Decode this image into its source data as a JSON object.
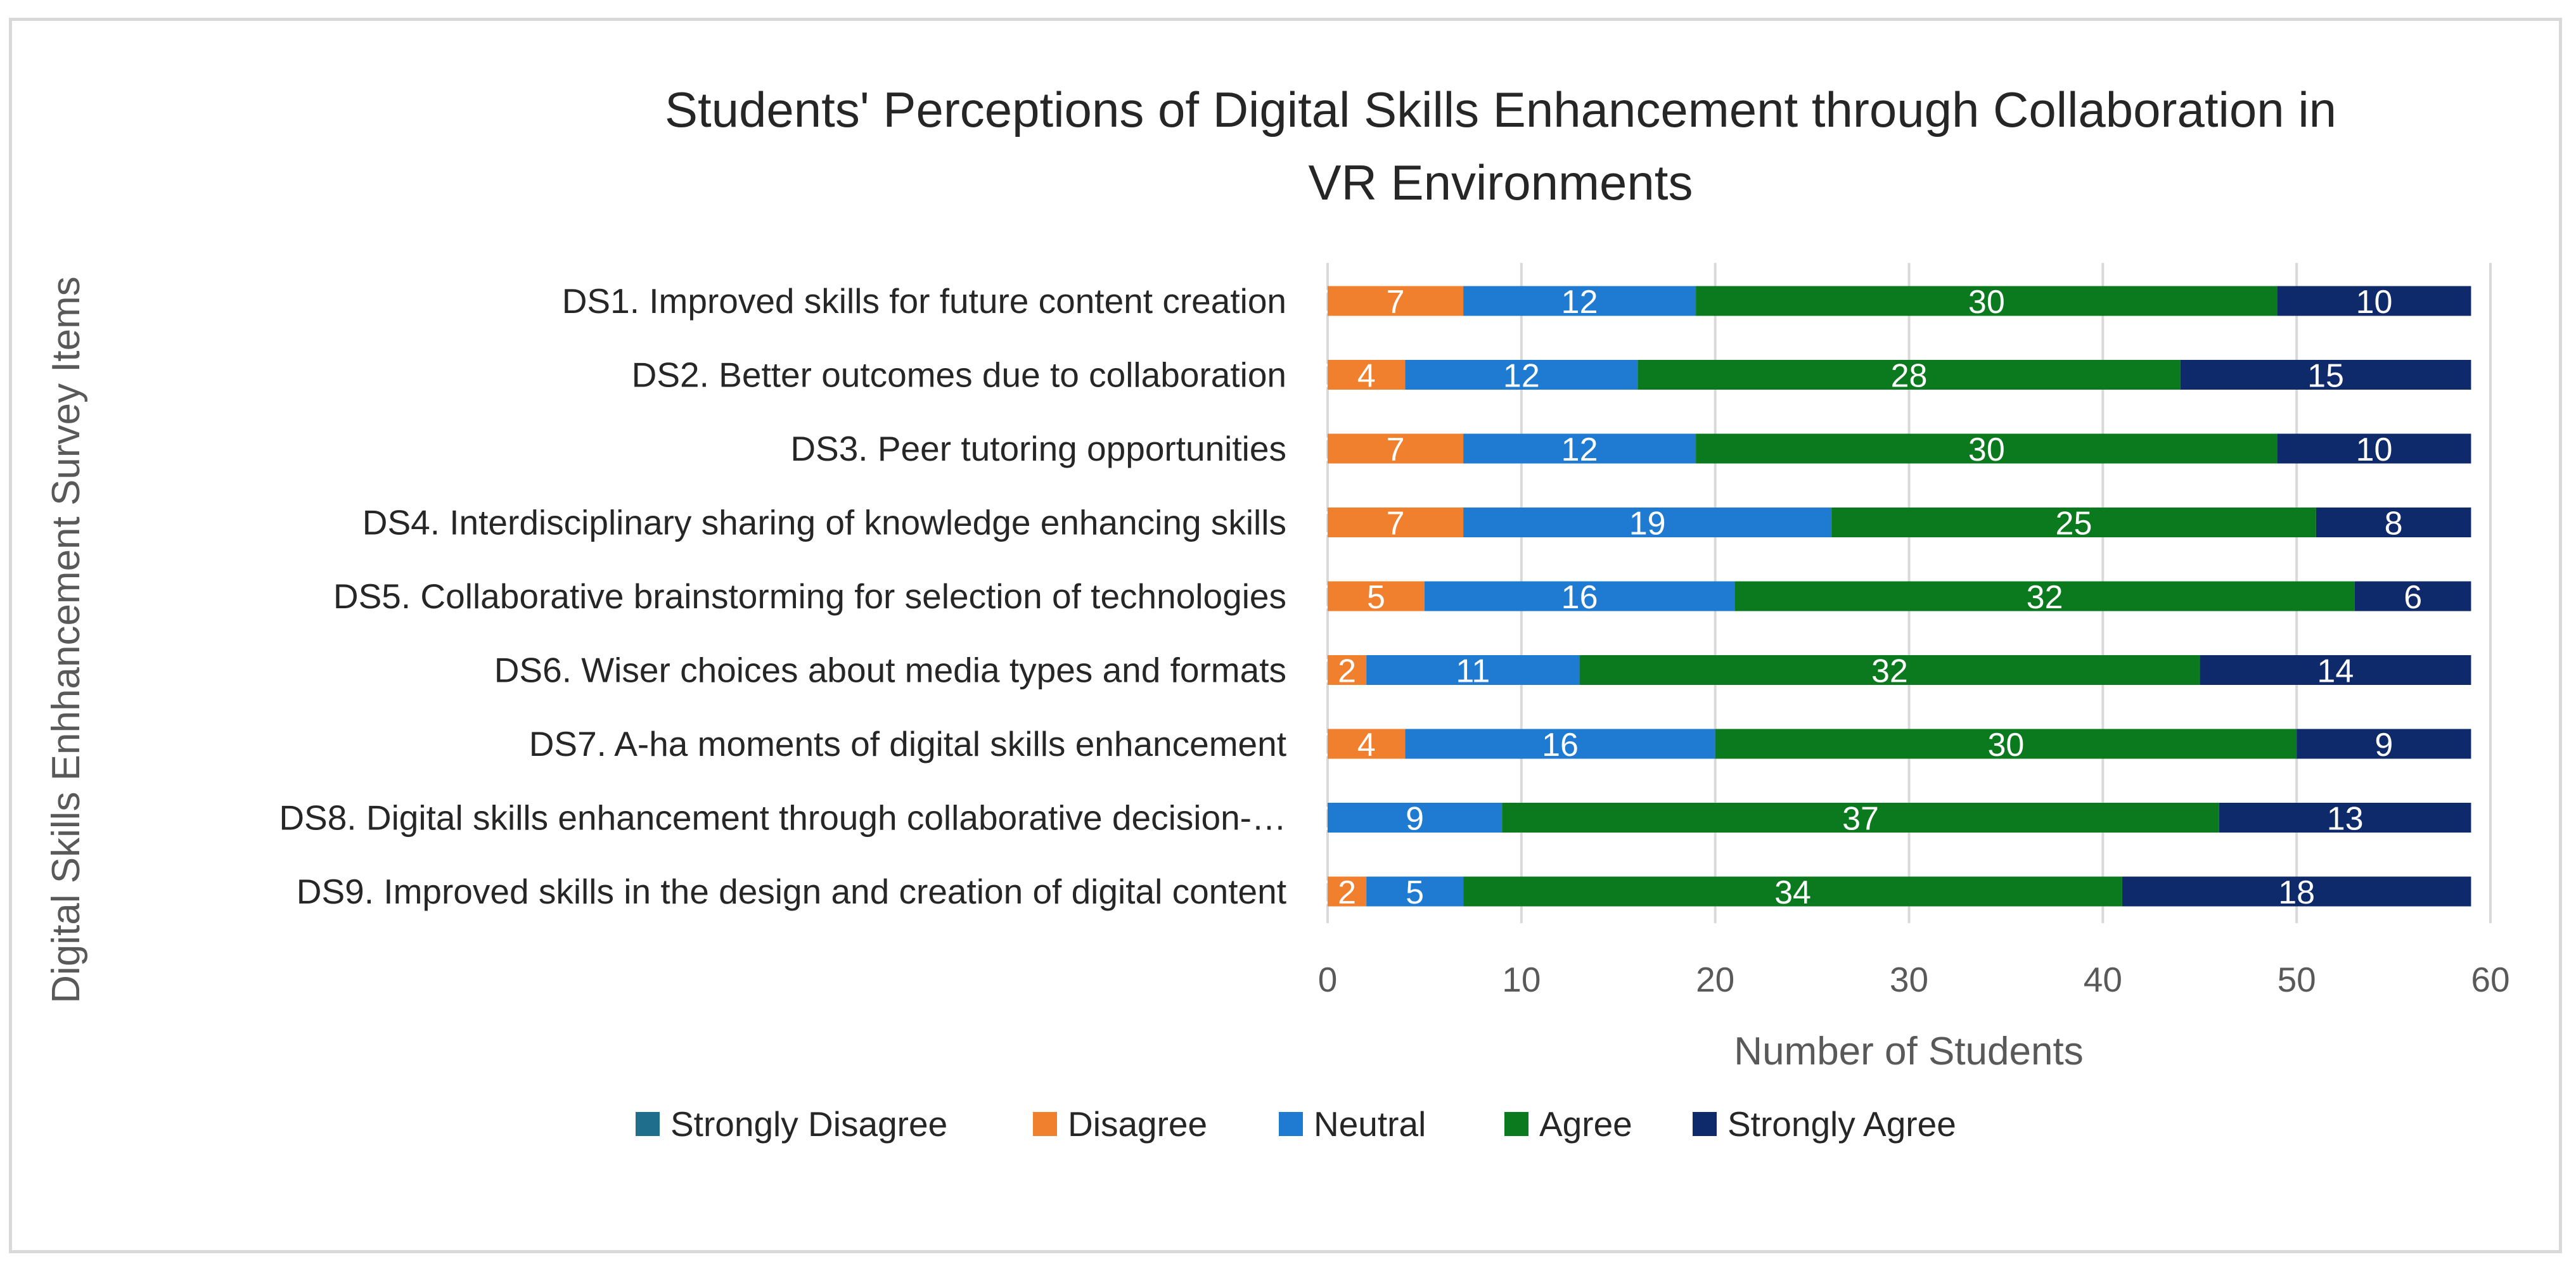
{
  "chart_data": {
    "type": "bar",
    "orientation": "horizontal",
    "stacked": true,
    "title_lines": [
      "Students' Perceptions of Digital Skills Enhancement through Collaboration in",
      "VR Environments"
    ],
    "xlabel": "Number of Students",
    "ylabel": "Digital Skills Enhhancement Survey Items",
    "xlim": [
      0,
      60
    ],
    "xticks": [
      0,
      10,
      20,
      30,
      40,
      50,
      60
    ],
    "grid": true,
    "legend_position": "bottom",
    "categories": [
      "DS1. Improved skills for future content creation",
      "DS2. Better outcomes due to collaboration",
      "DS3. Peer tutoring opportunities",
      "DS4. Interdisciplinary sharing of knowledge enhancing skills",
      "DS5. Collaborative brainstorming for selection of technologies",
      "DS6. Wiser choices about media types and formats",
      "DS7. A-ha moments of digital skills enhancement",
      "DS8. Digital skills enhancement through collaborative decision-…",
      "DS9. Improved skills in the design and creation of  digital content"
    ],
    "series": [
      {
        "name": "Strongly Disagree",
        "color": "#1f6e8c",
        "values": [
          0,
          0,
          0,
          0,
          0,
          0,
          0,
          0,
          0
        ]
      },
      {
        "name": "Disagree",
        "color": "#f07f2e",
        "values": [
          7,
          4,
          7,
          7,
          5,
          2,
          4,
          0,
          2
        ]
      },
      {
        "name": "Neutral",
        "color": "#1f7bd1",
        "values": [
          12,
          12,
          12,
          19,
          16,
          11,
          16,
          9,
          5
        ]
      },
      {
        "name": "Agree",
        "color": "#0b7a1e",
        "values": [
          30,
          28,
          30,
          25,
          32,
          32,
          30,
          37,
          34
        ]
      },
      {
        "name": "Strongly Agree",
        "color": "#0f2a6b",
        "values": [
          10,
          15,
          10,
          8,
          6,
          14,
          9,
          13,
          18
        ]
      }
    ]
  }
}
